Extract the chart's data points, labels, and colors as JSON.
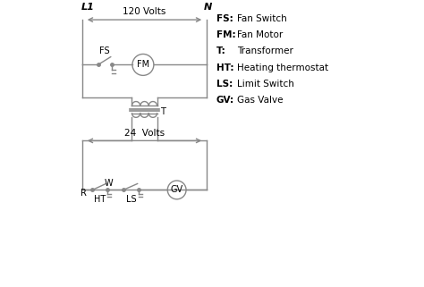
{
  "bg_color": "#ffffff",
  "line_color": "#888888",
  "text_color": "#000000",
  "legend": [
    [
      "FS:",
      "Fan Switch"
    ],
    [
      "FM:",
      "Fan Motor"
    ],
    [
      "T:",
      "Transformer"
    ],
    [
      "HT:",
      "Heating thermostat"
    ],
    [
      "LS:",
      "Limit Switch"
    ],
    [
      "GV:",
      "Gas Valve"
    ]
  ]
}
